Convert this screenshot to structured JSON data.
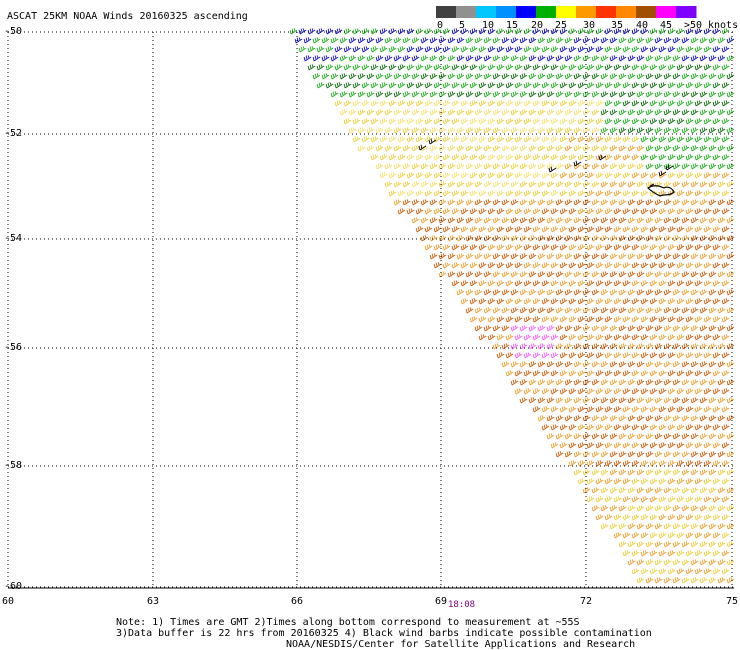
{
  "title": "ASCAT 25KM NOAA Winds 20160325 ascending",
  "legend": {
    "unit": "knots",
    "ticks": [
      "0",
      "5",
      "10",
      "15",
      "20",
      "25",
      "30",
      "35",
      "40",
      "45",
      ">50"
    ],
    "colors": [
      "#404040",
      "#909090",
      "#00c8ff",
      "#0090ff",
      "#0000ff",
      "#00b000",
      "#ffff00",
      "#ff9900",
      "#ff3300",
      "#ff8800",
      "#a05000",
      "#ff00ff",
      "#8000ff"
    ]
  },
  "lat_labels": [
    "-50",
    "-52",
    "-54",
    "-56",
    "-58",
    "-60"
  ],
  "lon_labels": [
    "60",
    "63",
    "66",
    "69",
    "72",
    "75"
  ],
  "time_label": "18:08",
  "notes": {
    "line1": "Note: 1) Times are GMT 2)Times along bottom correspond to measurement at ~55S",
    "line2": "3)Data buffer is 22 hrs from 20160325 4) Black wind barbs indicate possible contamination",
    "line3": "NOAA/NESDIS/Center for Satellite Applications and Research"
  },
  "wind_colors": {
    "blue": "#1010d0",
    "green": "#20b020",
    "dark_green": "#107010",
    "yellow": "#f0d040",
    "light_yellow": "#f8e070",
    "orange": "#f0a030",
    "dark_orange": "#d06010",
    "pink": "#ff60ff",
    "contaminated": "#000000"
  }
}
